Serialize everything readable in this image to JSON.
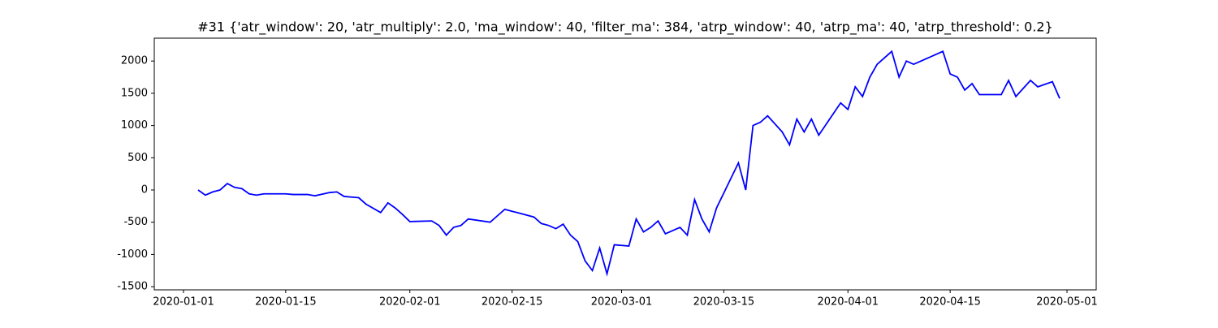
{
  "chart_data": {
    "type": "line",
    "title": "#31 {'atr_window': 20, 'atr_multiply': 2.0, 'ma_window': 40, 'filter_ma': 384, 'atrp_window': 40, 'atrp_ma': 40, 'atrp_threshold': 0.2}",
    "x": [
      "2020-01-03",
      "2020-01-04",
      "2020-01-05",
      "2020-01-06",
      "2020-01-07",
      "2020-01-08",
      "2020-01-09",
      "2020-01-10",
      "2020-01-11",
      "2020-01-12",
      "2020-01-15",
      "2020-01-16",
      "2020-01-18",
      "2020-01-19",
      "2020-01-21",
      "2020-01-22",
      "2020-01-23",
      "2020-01-24",
      "2020-01-25",
      "2020-01-26",
      "2020-01-28",
      "2020-01-29",
      "2020-01-30",
      "2020-01-31",
      "2020-02-01",
      "2020-02-04",
      "2020-02-05",
      "2020-02-06",
      "2020-02-07",
      "2020-02-08",
      "2020-02-09",
      "2020-02-12",
      "2020-02-13",
      "2020-02-14",
      "2020-02-15",
      "2020-02-18",
      "2020-02-19",
      "2020-02-20",
      "2020-02-21",
      "2020-02-22",
      "2020-02-23",
      "2020-02-24",
      "2020-02-25",
      "2020-02-26",
      "2020-02-27",
      "2020-02-28",
      "2020-02-29",
      "2020-03-01",
      "2020-03-02",
      "2020-03-03",
      "2020-03-04",
      "2020-03-05",
      "2020-03-06",
      "2020-03-07",
      "2020-03-09",
      "2020-03-10",
      "2020-03-11",
      "2020-03-12",
      "2020-03-13",
      "2020-03-14",
      "2020-03-17",
      "2020-03-18",
      "2020-03-19",
      "2020-03-20",
      "2020-03-21",
      "2020-03-23",
      "2020-03-24",
      "2020-03-25",
      "2020-03-26",
      "2020-03-27",
      "2020-03-28",
      "2020-03-31",
      "2020-04-01",
      "2020-04-02",
      "2020-04-03",
      "2020-04-04",
      "2020-04-05",
      "2020-04-07",
      "2020-04-08",
      "2020-04-09",
      "2020-04-10",
      "2020-04-14",
      "2020-04-15",
      "2020-04-16",
      "2020-04-17",
      "2020-04-18",
      "2020-04-19",
      "2020-04-22",
      "2020-04-23",
      "2020-04-24",
      "2020-04-26",
      "2020-04-27",
      "2020-04-29",
      "2020-04-30"
    ],
    "series": [
      {
        "color": "#0000ff",
        "values": [
          0,
          -80,
          -30,
          0,
          100,
          40,
          20,
          -60,
          -80,
          -60,
          -60,
          -70,
          -70,
          -90,
          -40,
          -30,
          -100,
          -110,
          -120,
          -220,
          -350,
          -200,
          -280,
          -380,
          -490,
          -480,
          -550,
          -700,
          -580,
          -550,
          -450,
          -500,
          -400,
          -300,
          -330,
          -420,
          -520,
          -550,
          -600,
          -530,
          -700,
          -800,
          -1100,
          -1250,
          -900,
          -1300,
          -850,
          -860,
          -870,
          -450,
          -650,
          -580,
          -480,
          -680,
          -580,
          -700,
          -150,
          -450,
          -650,
          -280,
          420,
          0,
          1000,
          1050,
          1150,
          900,
          700,
          1100,
          900,
          1100,
          850,
          1350,
          1250,
          1600,
          1450,
          1750,
          1950,
          2150,
          1750,
          2000,
          1950,
          2150,
          1800,
          1750,
          1550,
          1650,
          1480,
          1480,
          1700,
          1450,
          1700,
          1600,
          1680,
          1420
        ]
      }
    ],
    "xlim": [
      "2019-12-28",
      "2020-05-05"
    ],
    "xticks": [
      "2020-01-01",
      "2020-01-15",
      "2020-02-01",
      "2020-02-15",
      "2020-03-01",
      "2020-03-15",
      "2020-04-01",
      "2020-04-15",
      "2020-05-01"
    ],
    "ylim": [
      -1549,
      2355
    ],
    "yticks": [
      -1500,
      -1000,
      -500,
      0,
      500,
      1000,
      1500,
      2000
    ]
  }
}
